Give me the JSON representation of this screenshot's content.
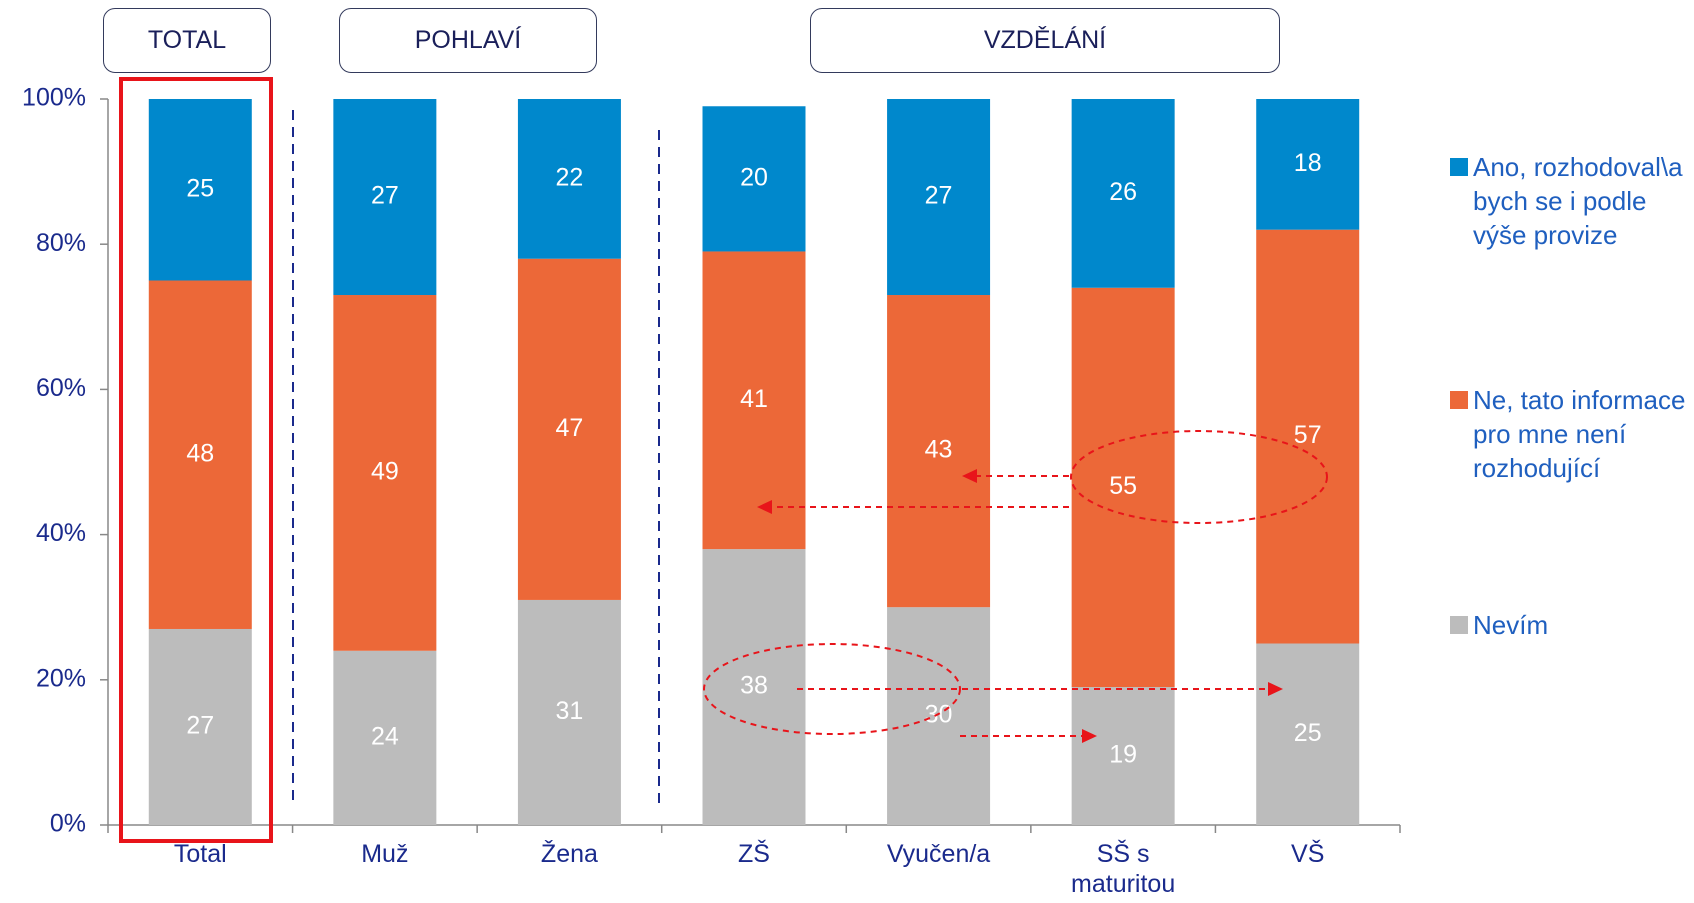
{
  "chart_data": {
    "type": "bar",
    "stacked": true,
    "group_labels": [
      "TOTAL",
      "POHLAVÍ",
      "VZDĚLÁNÍ"
    ],
    "categories": [
      "Total",
      "Muž",
      "Žena",
      "ZŠ",
      "Vyučen/a",
      "SŠ s maturitou",
      "VŠ"
    ],
    "series": [
      {
        "name": "Nevím",
        "color": "#bcbcbc",
        "values": [
          27,
          24,
          31,
          38,
          30,
          19,
          25
        ]
      },
      {
        "name": "Ne, tato informace pro mne není rozhodující",
        "color": "#ec6838",
        "values": [
          48,
          49,
          47,
          41,
          43,
          55,
          57
        ]
      },
      {
        "name": "Ano, rozhodoval\\a bych se i podle výše provize",
        "color": "#0088cc",
        "values": [
          25,
          27,
          22,
          20,
          27,
          26,
          18
        ]
      }
    ],
    "ylim": [
      0,
      100
    ],
    "yticks": [
      {
        "value": 0,
        "label": "0%"
      },
      {
        "value": 20,
        "label": "20%"
      },
      {
        "value": 40,
        "label": "40%"
      },
      {
        "value": 60,
        "label": "60%"
      },
      {
        "value": 80,
        "label": "80%"
      },
      {
        "value": 100,
        "label": "100%"
      }
    ]
  }
}
